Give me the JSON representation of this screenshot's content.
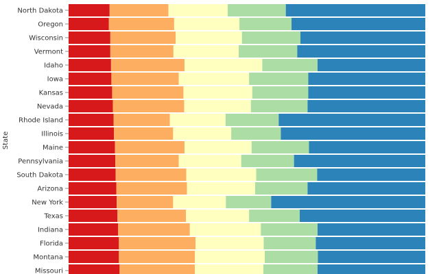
{
  "chart_data": {
    "type": "bar",
    "orientation": "horizontal",
    "stacked": "normalized",
    "ylabel": "State",
    "xlim": [
      0,
      1
    ],
    "colors": [
      "#d7191c",
      "#fdae61",
      "#ffffbf",
      "#abdda4",
      "#2b83ba"
    ],
    "categories": [
      "North Dakota",
      "Oregon",
      "Wisconsin",
      "Vermont",
      "Idaho",
      "Iowa",
      "Kansas",
      "Nevada",
      "Rhode Island",
      "Illinois",
      "Maine",
      "Pennsylvania",
      "South Dakota",
      "Arizona",
      "New York",
      "Texas",
      "Indiana",
      "Florida",
      "Montana",
      "Missouri"
    ],
    "series": [
      {
        "values": [
          0.115,
          0.113,
          0.117,
          0.117,
          0.119,
          0.12,
          0.122,
          0.124,
          0.126,
          0.127,
          0.13,
          0.131,
          0.132,
          0.134,
          0.135,
          0.137,
          0.139,
          0.141,
          0.141,
          0.143
        ]
      },
      {
        "values": [
          0.165,
          0.183,
          0.183,
          0.177,
          0.206,
          0.189,
          0.2,
          0.2,
          0.158,
          0.166,
          0.195,
          0.178,
          0.198,
          0.198,
          0.158,
          0.192,
          0.201,
          0.215,
          0.213,
          0.211
        ]
      },
      {
        "values": [
          0.166,
          0.183,
          0.186,
          0.183,
          0.218,
          0.197,
          0.193,
          0.187,
          0.156,
          0.163,
          0.188,
          0.175,
          0.196,
          0.191,
          0.148,
          0.177,
          0.199,
          0.191,
          0.196,
          0.192
        ]
      },
      {
        "values": [
          0.163,
          0.146,
          0.164,
          0.164,
          0.155,
          0.166,
          0.157,
          0.159,
          0.149,
          0.139,
          0.161,
          0.148,
          0.171,
          0.147,
          0.127,
          0.142,
          0.159,
          0.146,
          0.149,
          0.152
        ]
      },
      {
        "values": [
          0.391,
          0.375,
          0.35,
          0.359,
          0.302,
          0.328,
          0.328,
          0.33,
          0.411,
          0.405,
          0.326,
          0.368,
          0.303,
          0.33,
          0.432,
          0.352,
          0.302,
          0.307,
          0.301,
          0.302
        ]
      }
    ]
  }
}
